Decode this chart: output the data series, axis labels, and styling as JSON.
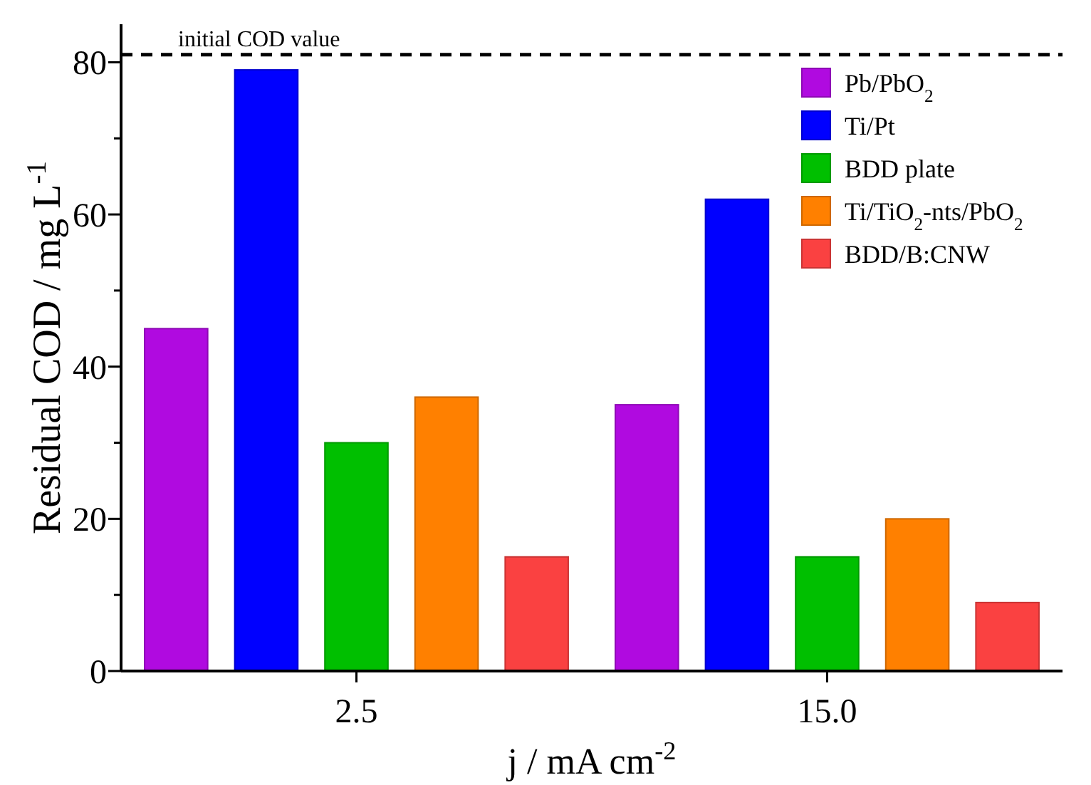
{
  "chart_data": {
    "type": "bar",
    "xlabel": "j / mA cm$^{-2}$",
    "ylabel": "Residual COD / mg L$^{-1}$",
    "categories": [
      "2.5",
      "15.0"
    ],
    "series": [
      {
        "name": "Pb/PbO$_{2}$",
        "color": "#b00ae0",
        "values": [
          45,
          35
        ]
      },
      {
        "name": "Ti/Pt",
        "color": "#0000ff",
        "values": [
          79,
          62
        ]
      },
      {
        "name": "BDD plate",
        "color": "#00bf00",
        "values": [
          30,
          15
        ]
      },
      {
        "name": "Ti/TiO$_{2}$-nts/PbO$_{2}$",
        "color": "#ff8000",
        "values": [
          36,
          20
        ]
      },
      {
        "name": "BDD/B:CNW",
        "color": "#fa4141",
        "values": [
          15,
          9
        ]
      }
    ],
    "ylim": [
      0,
      85
    ],
    "yticks": [
      0,
      {
        "value": 10,
        "label": null
      },
      20,
      {
        "value": 30,
        "label": null
      },
      40,
      {
        "value": 50,
        "label": null
      },
      60,
      {
        "value": 70,
        "label": null
      },
      80
    ],
    "ref_lines": [
      {
        "axis": "y",
        "value": 81,
        "label": "initial COD value",
        "color": "#000000",
        "line_style": "dashed"
      }
    ],
    "grid": false,
    "legend": "top right"
  }
}
